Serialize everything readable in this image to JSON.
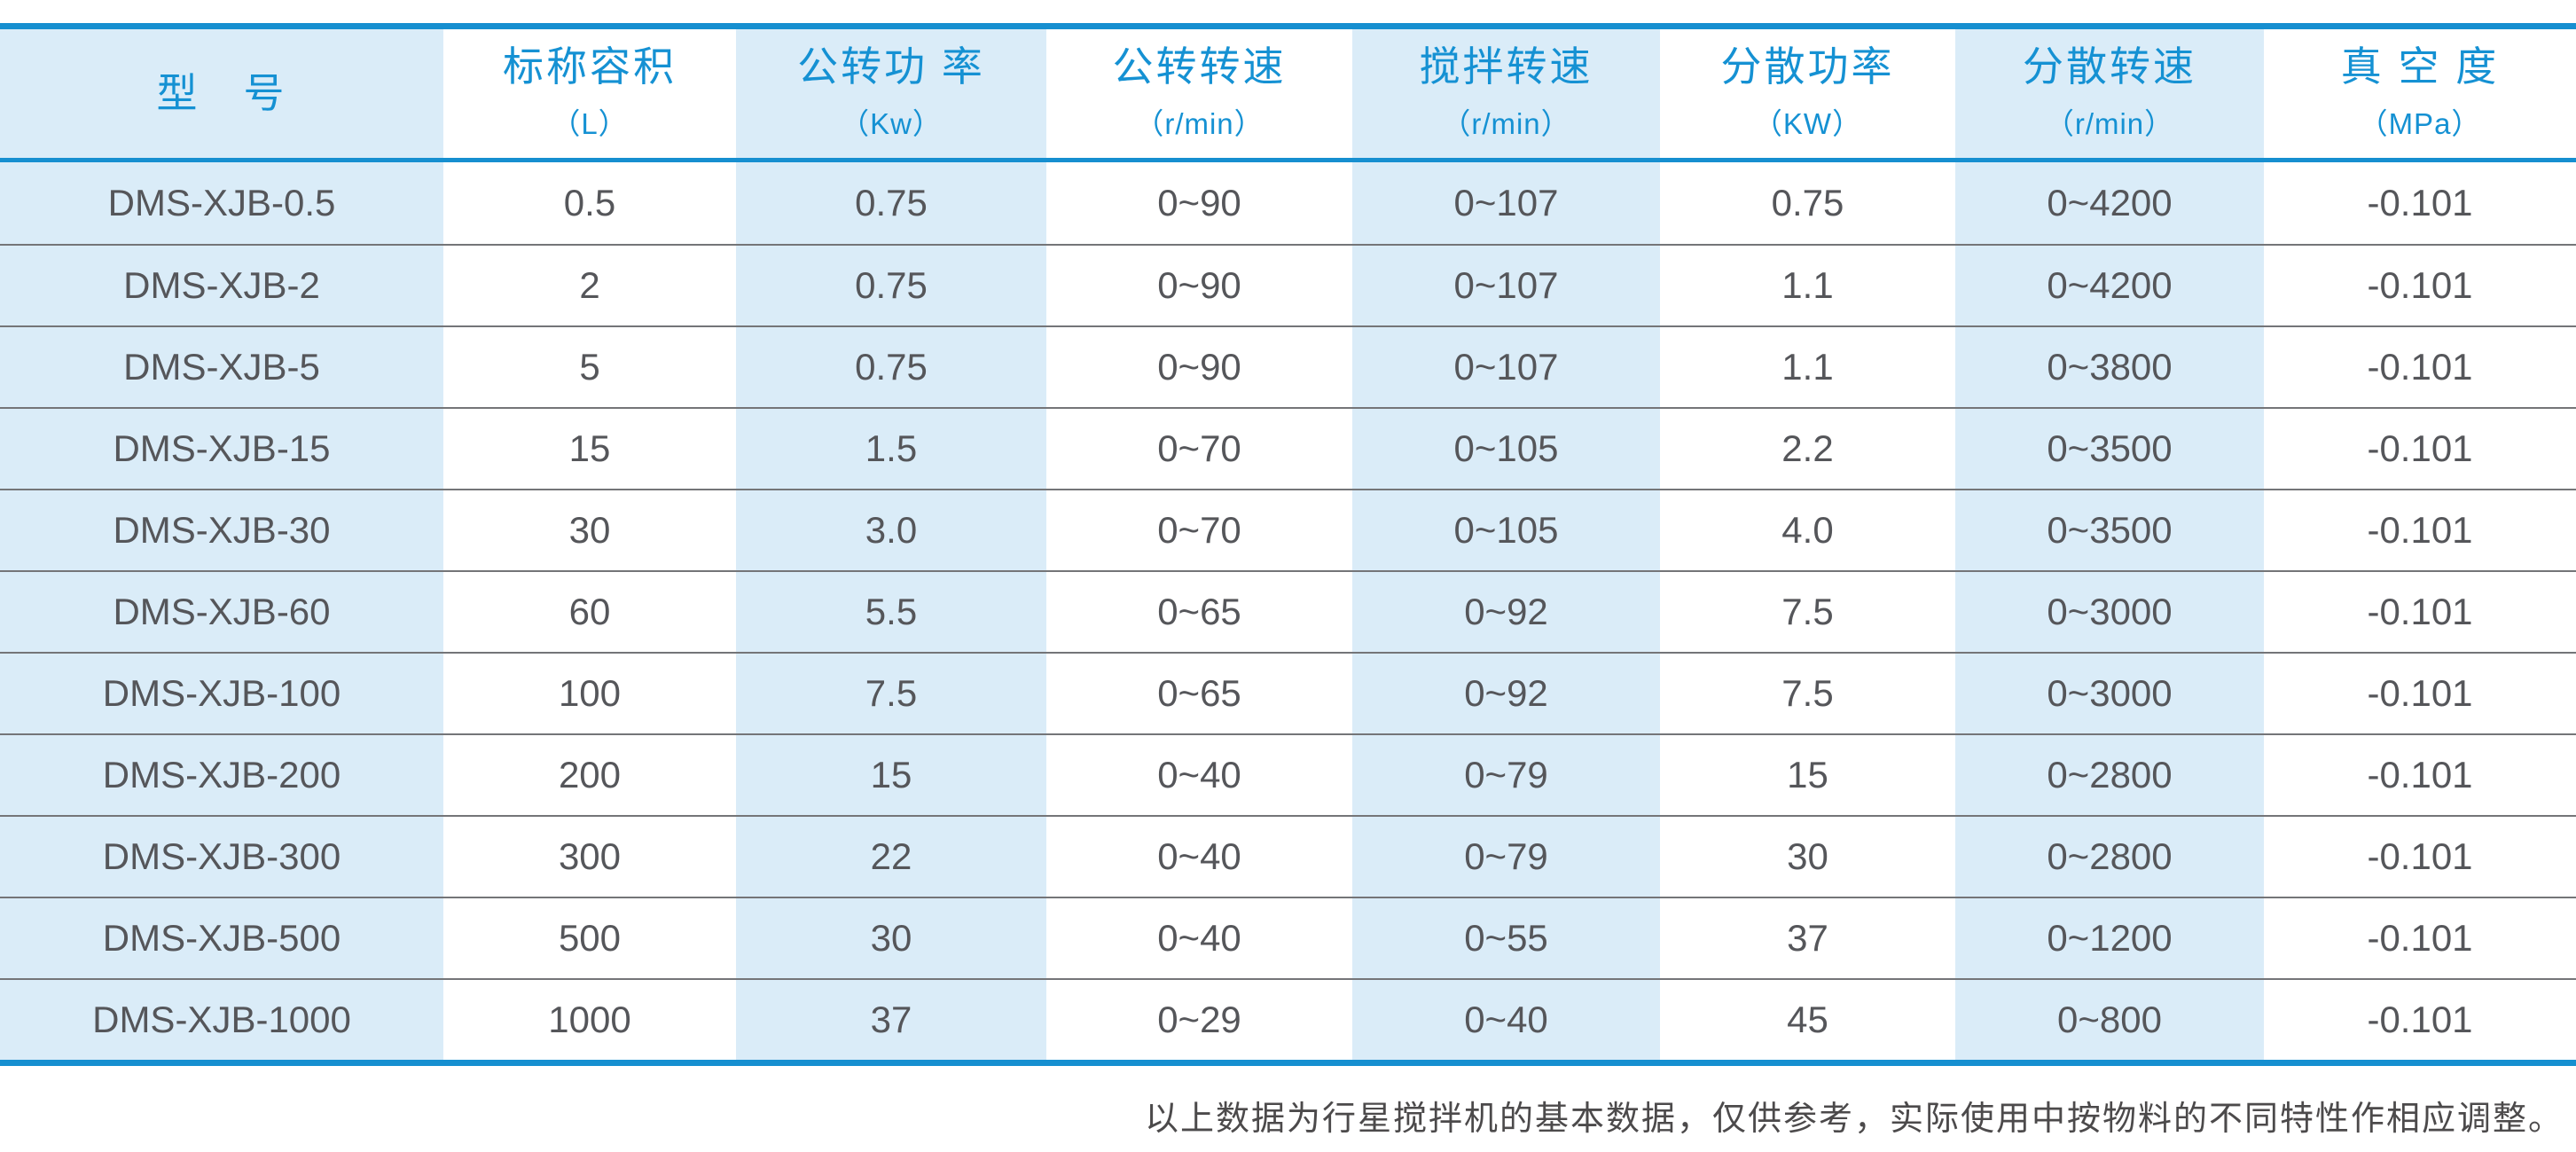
{
  "table": {
    "columns": [
      {
        "key": "model",
        "title": "型　号",
        "unit": ""
      },
      {
        "key": "nominal-capacity",
        "title": "标称容积",
        "unit": "（L）"
      },
      {
        "key": "revolution-power",
        "title": "公转功 率",
        "unit": "（Kw）"
      },
      {
        "key": "revolution-speed",
        "title": "公转转速",
        "unit": "（r/min）"
      },
      {
        "key": "stirring-speed",
        "title": "搅拌转速",
        "unit": "（r/min）"
      },
      {
        "key": "dispersion-power",
        "title": "分散功率",
        "unit": "（KW）"
      },
      {
        "key": "dispersion-speed",
        "title": "分散转速",
        "unit": "（r/min）"
      },
      {
        "key": "vacuum-degree",
        "title": "真 空 度",
        "unit": "（MPa）"
      }
    ],
    "rows": [
      [
        "DMS-XJB-0.5",
        "0.5",
        "0.75",
        "0~90",
        "0~107",
        "0.75",
        "0~4200",
        "-0.101"
      ],
      [
        "DMS-XJB-2",
        "2",
        "0.75",
        "0~90",
        "0~107",
        "1.1",
        "0~4200",
        "-0.101"
      ],
      [
        "DMS-XJB-5",
        "5",
        "0.75",
        "0~90",
        "0~107",
        "1.1",
        "0~3800",
        "-0.101"
      ],
      [
        "DMS-XJB-15",
        "15",
        "1.5",
        "0~70",
        "0~105",
        "2.2",
        "0~3500",
        "-0.101"
      ],
      [
        "DMS-XJB-30",
        "30",
        "3.0",
        "0~70",
        "0~105",
        "4.0",
        "0~3500",
        "-0.101"
      ],
      [
        "DMS-XJB-60",
        "60",
        "5.5",
        "0~65",
        "0~92",
        "7.5",
        "0~3000",
        "-0.101"
      ],
      [
        "DMS-XJB-100",
        "100",
        "7.5",
        "0~65",
        "0~92",
        "7.5",
        "0~3000",
        "-0.101"
      ],
      [
        "DMS-XJB-200",
        "200",
        "15",
        "0~40",
        "0~79",
        "15",
        "0~2800",
        "-0.101"
      ],
      [
        "DMS-XJB-300",
        "300",
        "22",
        "0~40",
        "0~79",
        "30",
        "0~2800",
        "-0.101"
      ],
      [
        "DMS-XJB-500",
        "500",
        "30",
        "0~40",
        "0~55",
        "37",
        "0~1200",
        "-0.101"
      ],
      [
        "DMS-XJB-1000",
        "1000",
        "37",
        "0~29",
        "0~40",
        "45",
        "0~800",
        "-0.101"
      ]
    ]
  },
  "footer": {
    "note": "以上数据为行星搅拌机的基本数据，仅供参考，实际使用中按物料的不同特性作相应调整。"
  },
  "colors": {
    "accent_blue": "#1591d3",
    "border_blue": "#168fd0",
    "band_light_blue": "#daecf8",
    "row_line_gray": "#747578",
    "data_text_gray": "#55565a",
    "note_text_gray": "#4c4a4b"
  }
}
